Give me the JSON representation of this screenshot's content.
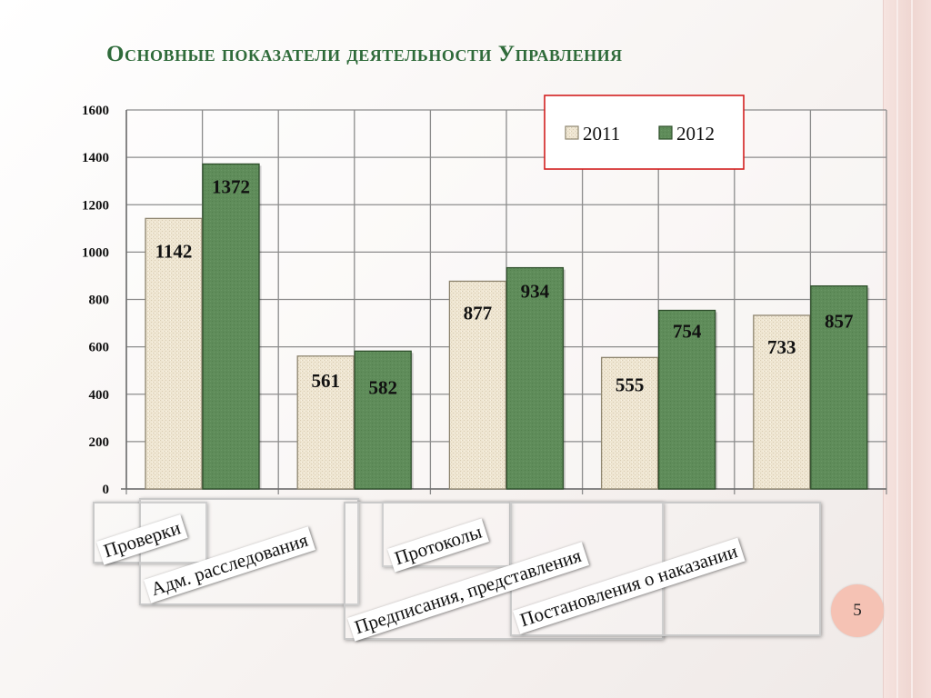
{
  "slide": {
    "title": "Основные показатели деятельности Управления",
    "page_number": "5"
  },
  "chart_data": {
    "type": "bar",
    "title": "",
    "xlabel": "",
    "ylabel": "",
    "ylim": [
      0,
      1600
    ],
    "yticks": [
      0,
      200,
      400,
      600,
      800,
      1000,
      1200,
      1400,
      1600
    ],
    "grid": true,
    "legend_position": "top-right",
    "categories": [
      "Проверки",
      "Адм. расследования",
      "Протоколы",
      "Предписания, представления",
      "Постановления о наказании"
    ],
    "series": [
      {
        "name": "2011",
        "values": [
          1142,
          561,
          877,
          555,
          733
        ],
        "color": "#efe6d2"
      },
      {
        "name": "2012",
        "values": [
          1372,
          582,
          934,
          754,
          857
        ],
        "color": "#5f8c5a"
      }
    ]
  },
  "colors": {
    "title": "#2f6b3a",
    "grid": "#8a8a8a",
    "legend_border": "#d21f1f",
    "page_badge": "#f5c2b4"
  }
}
